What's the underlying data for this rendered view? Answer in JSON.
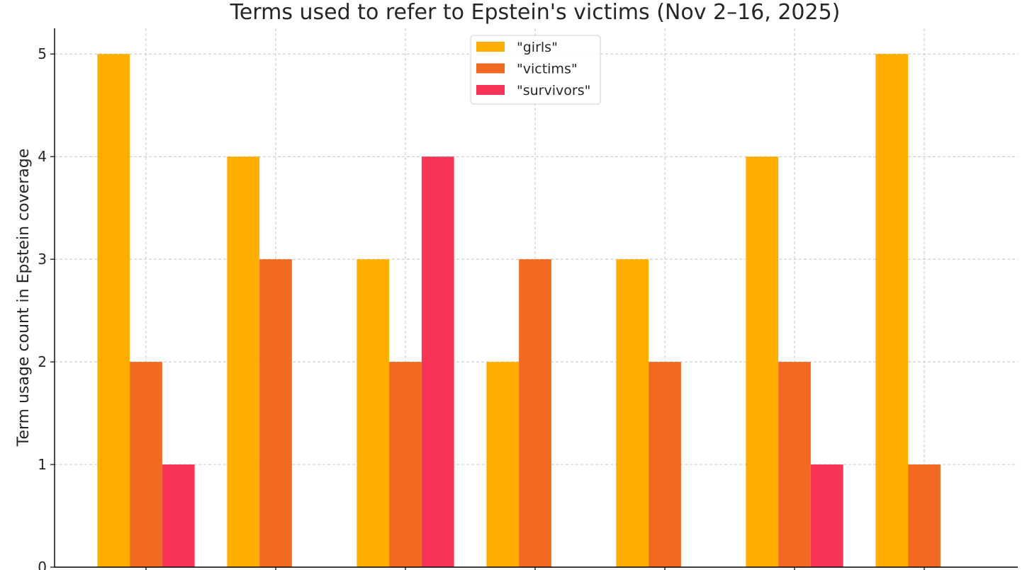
{
  "chart_data": {
    "type": "bar",
    "title": "Terms used to refer to Epstein's victims (Nov 2–16, 2025)",
    "xlabel": "",
    "ylabel": "Term usage count in Epstein coverage",
    "categories": [
      "",
      "",
      "",
      "",
      "",
      "",
      ""
    ],
    "ylim": [
      0,
      5.25
    ],
    "yticks": [
      0,
      1,
      2,
      3,
      4,
      5
    ],
    "grid": true,
    "legend": "top-center",
    "series": [
      {
        "name": "\"girls\"",
        "color": "#FFAE00",
        "values": [
          5,
          4,
          3,
          2,
          3,
          4,
          5
        ]
      },
      {
        "name": "\"victims\"",
        "color": "#F26A21",
        "values": [
          2,
          3,
          2,
          3,
          2,
          2,
          1
        ]
      },
      {
        "name": "\"survivors\"",
        "color": "#F73455",
        "values": [
          1,
          0,
          4,
          0,
          0,
          1,
          0
        ]
      }
    ]
  }
}
